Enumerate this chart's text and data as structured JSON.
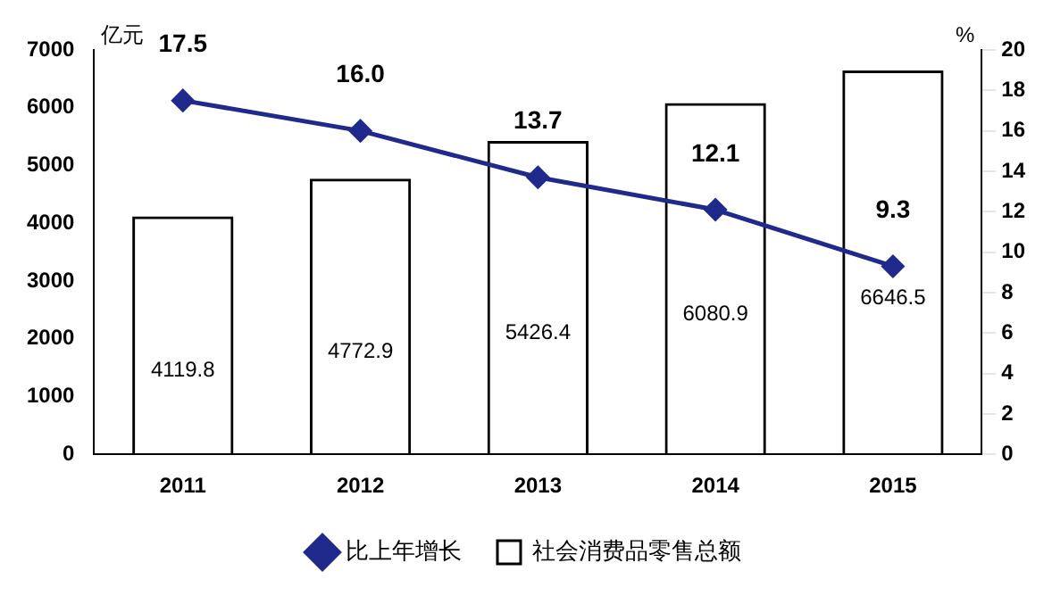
{
  "chart_data": {
    "type": "bar",
    "categories": [
      "2011",
      "2012",
      "2013",
      "2014",
      "2015"
    ],
    "ylabel": "亿元",
    "y2label": "%",
    "series": [
      {
        "name": "社会消费品零售总额",
        "color": "#000000",
        "values": [
          4119.8,
          4772.9,
          5426.4,
          6080.9,
          6646.5
        ]
      },
      {
        "name": "比上年增长",
        "type": "line",
        "axis": "y2",
        "color": "#1f2a8c",
        "values": [
          17.5,
          16.0,
          13.7,
          12.1,
          9.3
        ],
        "value_labels": [
          "17.5",
          "16.0",
          "13.7",
          "12.1",
          "9.3"
        ]
      }
    ],
    "ylim": [
      0,
      7000
    ],
    "yticks": [
      0,
      1000,
      2000,
      3000,
      4000,
      5000,
      6000,
      7000
    ],
    "y2lim": [
      0,
      20
    ],
    "y2ticks": [
      0,
      2,
      4,
      6,
      8,
      10,
      12,
      14,
      16,
      18,
      20
    ],
    "data_labels": true,
    "legend": "bottom",
    "marker": "diamond",
    "grid": false
  }
}
